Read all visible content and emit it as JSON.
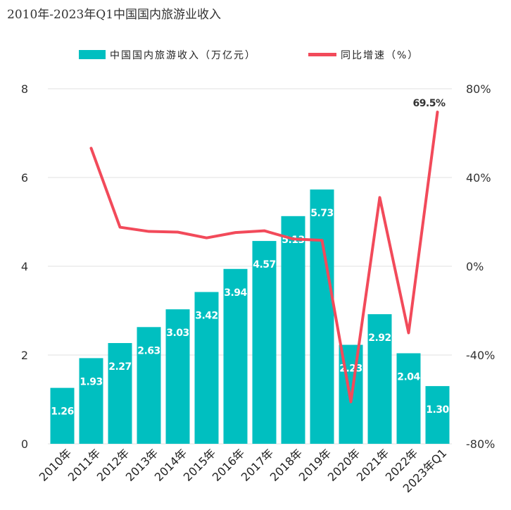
{
  "chart_data": {
    "type": "bar+line",
    "title": "2010年-2023年Q1中国国内旅游业收入",
    "categories": [
      "2010年",
      "2011年",
      "2012年",
      "2013年",
      "2014年",
      "2015年",
      "2016年",
      "2017年",
      "2018年",
      "2019年",
      "2020年",
      "2021年",
      "2022年",
      "2023年Q1"
    ],
    "series": [
      {
        "name": "中国国内旅游收入（万亿元）",
        "type": "bar",
        "axis": "left",
        "color": "#00BFC0",
        "values": [
          1.26,
          1.93,
          2.27,
          2.63,
          3.03,
          3.42,
          3.94,
          4.57,
          5.13,
          5.73,
          2.23,
          2.92,
          2.04,
          1.3
        ],
        "labels": [
          "1.26",
          "1.93",
          "2.27",
          "2.63",
          "3.03",
          "3.42",
          "3.94",
          "4.57",
          "5.13",
          "5.73",
          "2.23",
          "2.92",
          "2.04",
          "1.30"
        ]
      },
      {
        "name": "同比增速（%）",
        "type": "line",
        "axis": "right",
        "color": "#F24A5A",
        "values": [
          null,
          53.2,
          17.6,
          15.7,
          15.4,
          12.8,
          15.2,
          16.0,
          12.3,
          11.7,
          -61.1,
          31.0,
          -30.0,
          69.5
        ]
      }
    ],
    "annotation": {
      "text": "69.5%",
      "category": "2023年Q1"
    },
    "left_axis": {
      "min": 0,
      "max": 8,
      "ticks": [
        "0",
        "2",
        "4",
        "6",
        "8"
      ]
    },
    "right_axis": {
      "min": -80,
      "max": 80,
      "ticks": [
        "-80%",
        "-40%",
        "0%",
        "40%",
        "80%"
      ]
    },
    "grid": "horizontal",
    "legend_position": "top"
  }
}
